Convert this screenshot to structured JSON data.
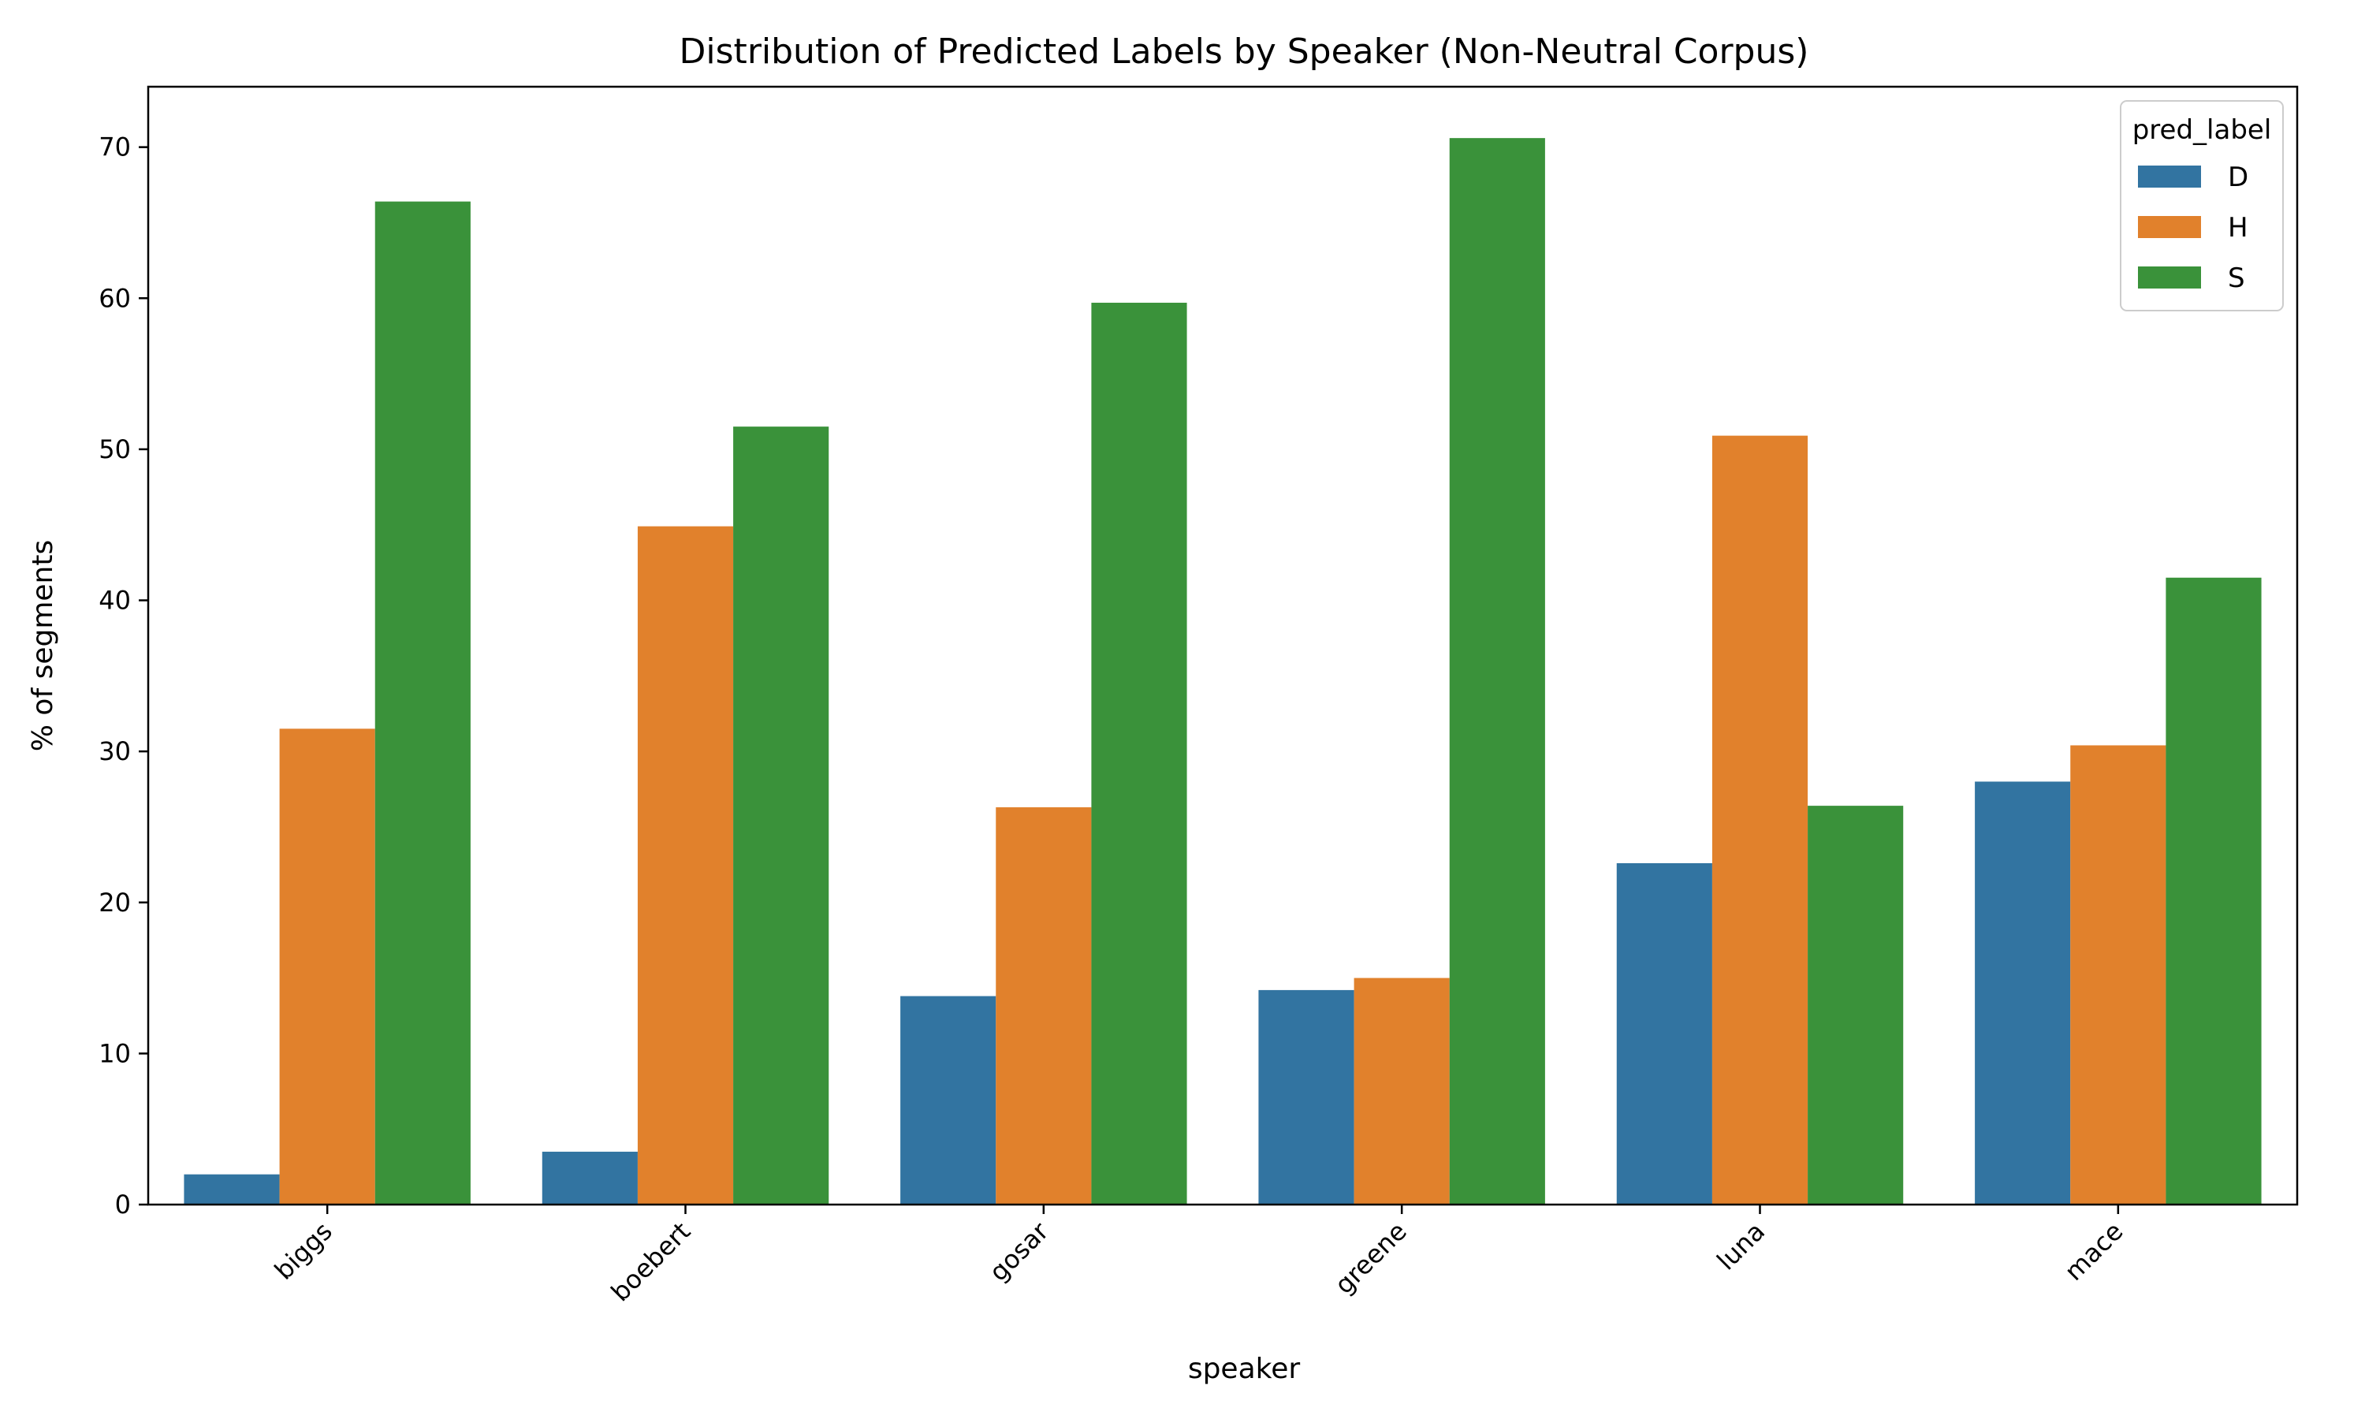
{
  "chart_data": {
    "type": "bar",
    "title": "Distribution of Predicted Labels by Speaker (Non-Neutral Corpus)",
    "xlabel": "speaker",
    "ylabel": "% of segments",
    "ylim": [
      0,
      74
    ],
    "yticks": [
      0,
      10,
      20,
      30,
      40,
      50,
      60,
      70
    ],
    "categories": [
      "biggs",
      "boebert",
      "gosar",
      "greene",
      "luna",
      "mace"
    ],
    "series": [
      {
        "name": "D",
        "color": "#3274a1",
        "values": [
          2.0,
          3.5,
          13.8,
          14.2,
          22.6,
          28.0
        ]
      },
      {
        "name": "H",
        "color": "#e1812c",
        "values": [
          31.5,
          44.9,
          26.3,
          15.0,
          50.9,
          30.4
        ]
      },
      {
        "name": "S",
        "color": "#3a923a",
        "values": [
          66.4,
          51.5,
          59.7,
          70.6,
          26.4,
          41.5
        ]
      }
    ],
    "legend": {
      "title": "pred_label",
      "position": "top-right"
    },
    "grid": false
  }
}
